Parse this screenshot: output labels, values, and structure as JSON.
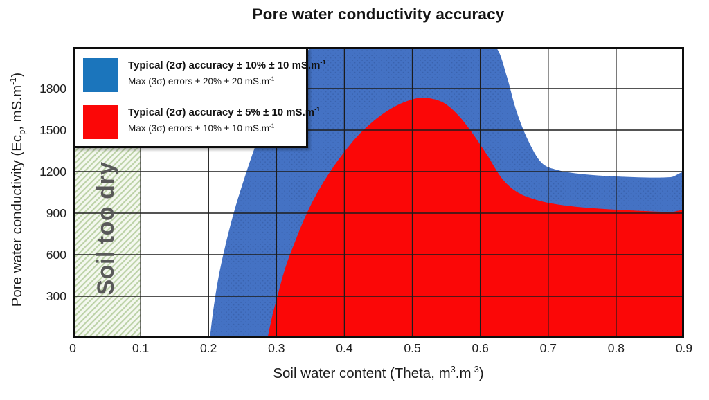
{
  "title": "Pore water conductivity accuracy",
  "axes": {
    "x": {
      "label_parts": [
        {
          "t": "Soil water content (Theta, m"
        },
        {
          "t": "3",
          "sup": true
        },
        {
          "t": ".m"
        },
        {
          "t": "-3",
          "sup": true
        },
        {
          "t": ")"
        }
      ],
      "range": [
        0,
        0.9
      ],
      "tick_values": [
        0,
        0.1,
        0.2,
        0.3,
        0.4,
        0.5,
        0.6,
        0.7,
        0.8,
        0.9
      ],
      "tick_labels": [
        "0",
        "0.1",
        "0.2",
        "0.3",
        "0.4",
        "0.5",
        "0.6",
        "0.7",
        "0.8",
        "0.9"
      ]
    },
    "y": {
      "label_parts": [
        {
          "t": "Pore water conductivity (Ec"
        },
        {
          "t": "p",
          "sub": true
        },
        {
          "t": ", mS.m"
        },
        {
          "t": "-1",
          "sup": true
        },
        {
          "t": ")"
        }
      ],
      "range": [
        0,
        2100
      ],
      "tick_values": [
        300,
        600,
        900,
        1200,
        1500,
        1800
      ],
      "tick_labels": [
        "300",
        "600",
        "900",
        "1200",
        "1500",
        "1800"
      ],
      "grid_step": 300
    }
  },
  "legend": {
    "items": [
      {
        "color": "#1B75BC",
        "title_parts": [
          {
            "t": "Typical (2σ) accuracy ± 10% ± 10 mS.m"
          },
          {
            "t": "-1",
            "sup": true
          }
        ],
        "subtitle_parts": [
          {
            "t": "Max (3σ) errors ± 20% ± 20 mS.m"
          },
          {
            "t": "-1",
            "sup": true
          }
        ]
      },
      {
        "color": "#FB0707",
        "title_parts": [
          {
            "t": "Typical (2σ) accuracy ± 5% ± 10 mS.m"
          },
          {
            "t": "-1",
            "sup": true
          }
        ],
        "subtitle_parts": [
          {
            "t": "Max (3σ) errors ± 10% ± 10 mS.m"
          },
          {
            "t": "-1",
            "sup": true
          }
        ]
      }
    ]
  },
  "chart_data": {
    "type": "area",
    "title": "Pore water conductivity accuracy",
    "xlabel": "Soil water content (Theta, m3.m-3)",
    "ylabel": "Pore water conductivity (Ecp, mS.m-1)",
    "x_range": [
      0,
      0.9
    ],
    "y_range": [
      0,
      2100
    ],
    "grid": "on",
    "colors": {
      "blue_region": "#4472C4",
      "blue_region_dot": "#3A63AE",
      "red_region": "#FB0707",
      "hatch_background": "#f4f8ef",
      "hatch_stripe": "#bcd2a7",
      "gridline": "#1c1c1c",
      "border": "#0d0d0d",
      "soil_note_text": "#595959"
    },
    "soil_note": {
      "text": "Soil too dry",
      "x": 0.048,
      "y": 790,
      "x_extent": [
        0,
        0.1
      ]
    },
    "regions": [
      {
        "name": "blue-accuracy-region",
        "fill": "blue_region",
        "boundary_theta_ec": [
          [
            0.2,
            -60
          ],
          [
            0.202,
            0
          ],
          [
            0.207,
            200
          ],
          [
            0.214,
            420
          ],
          [
            0.224,
            650
          ],
          [
            0.237,
            900
          ],
          [
            0.252,
            1140
          ],
          [
            0.27,
            1400
          ],
          [
            0.292,
            1680
          ],
          [
            0.318,
            1920
          ],
          [
            0.345,
            2070
          ],
          [
            0.372,
            2160
          ],
          [
            0.46,
            2200
          ],
          [
            0.56,
            2190
          ],
          [
            0.605,
            2140
          ],
          [
            0.625,
            2085
          ],
          [
            0.639,
            1890
          ],
          [
            0.653,
            1640
          ],
          [
            0.67,
            1430
          ],
          [
            0.69,
            1265
          ],
          [
            0.715,
            1210
          ],
          [
            0.75,
            1182
          ],
          [
            0.8,
            1165
          ],
          [
            0.85,
            1157
          ],
          [
            0.88,
            1160
          ],
          [
            0.905,
            1172
          ],
          [
            0.91,
            800
          ],
          [
            0.91,
            -60
          ]
        ]
      },
      {
        "name": "red-accuracy-region",
        "fill": "red_region",
        "boundary_theta_ec": [
          [
            0.285,
            -60
          ],
          [
            0.287,
            0
          ],
          [
            0.294,
            160
          ],
          [
            0.303,
            330
          ],
          [
            0.314,
            520
          ],
          [
            0.327,
            690
          ],
          [
            0.341,
            860
          ],
          [
            0.357,
            1020
          ],
          [
            0.375,
            1170
          ],
          [
            0.395,
            1310
          ],
          [
            0.418,
            1450
          ],
          [
            0.444,
            1570
          ],
          [
            0.472,
            1665
          ],
          [
            0.5,
            1722
          ],
          [
            0.52,
            1733
          ],
          [
            0.545,
            1700
          ],
          [
            0.567,
            1610
          ],
          [
            0.588,
            1480
          ],
          [
            0.61,
            1320
          ],
          [
            0.632,
            1150
          ],
          [
            0.655,
            1050
          ],
          [
            0.683,
            995
          ],
          [
            0.715,
            962
          ],
          [
            0.755,
            940
          ],
          [
            0.8,
            925
          ],
          [
            0.85,
            913
          ],
          [
            0.88,
            908
          ],
          [
            0.905,
            906
          ],
          [
            0.91,
            700
          ],
          [
            0.91,
            -60
          ]
        ]
      }
    ]
  }
}
